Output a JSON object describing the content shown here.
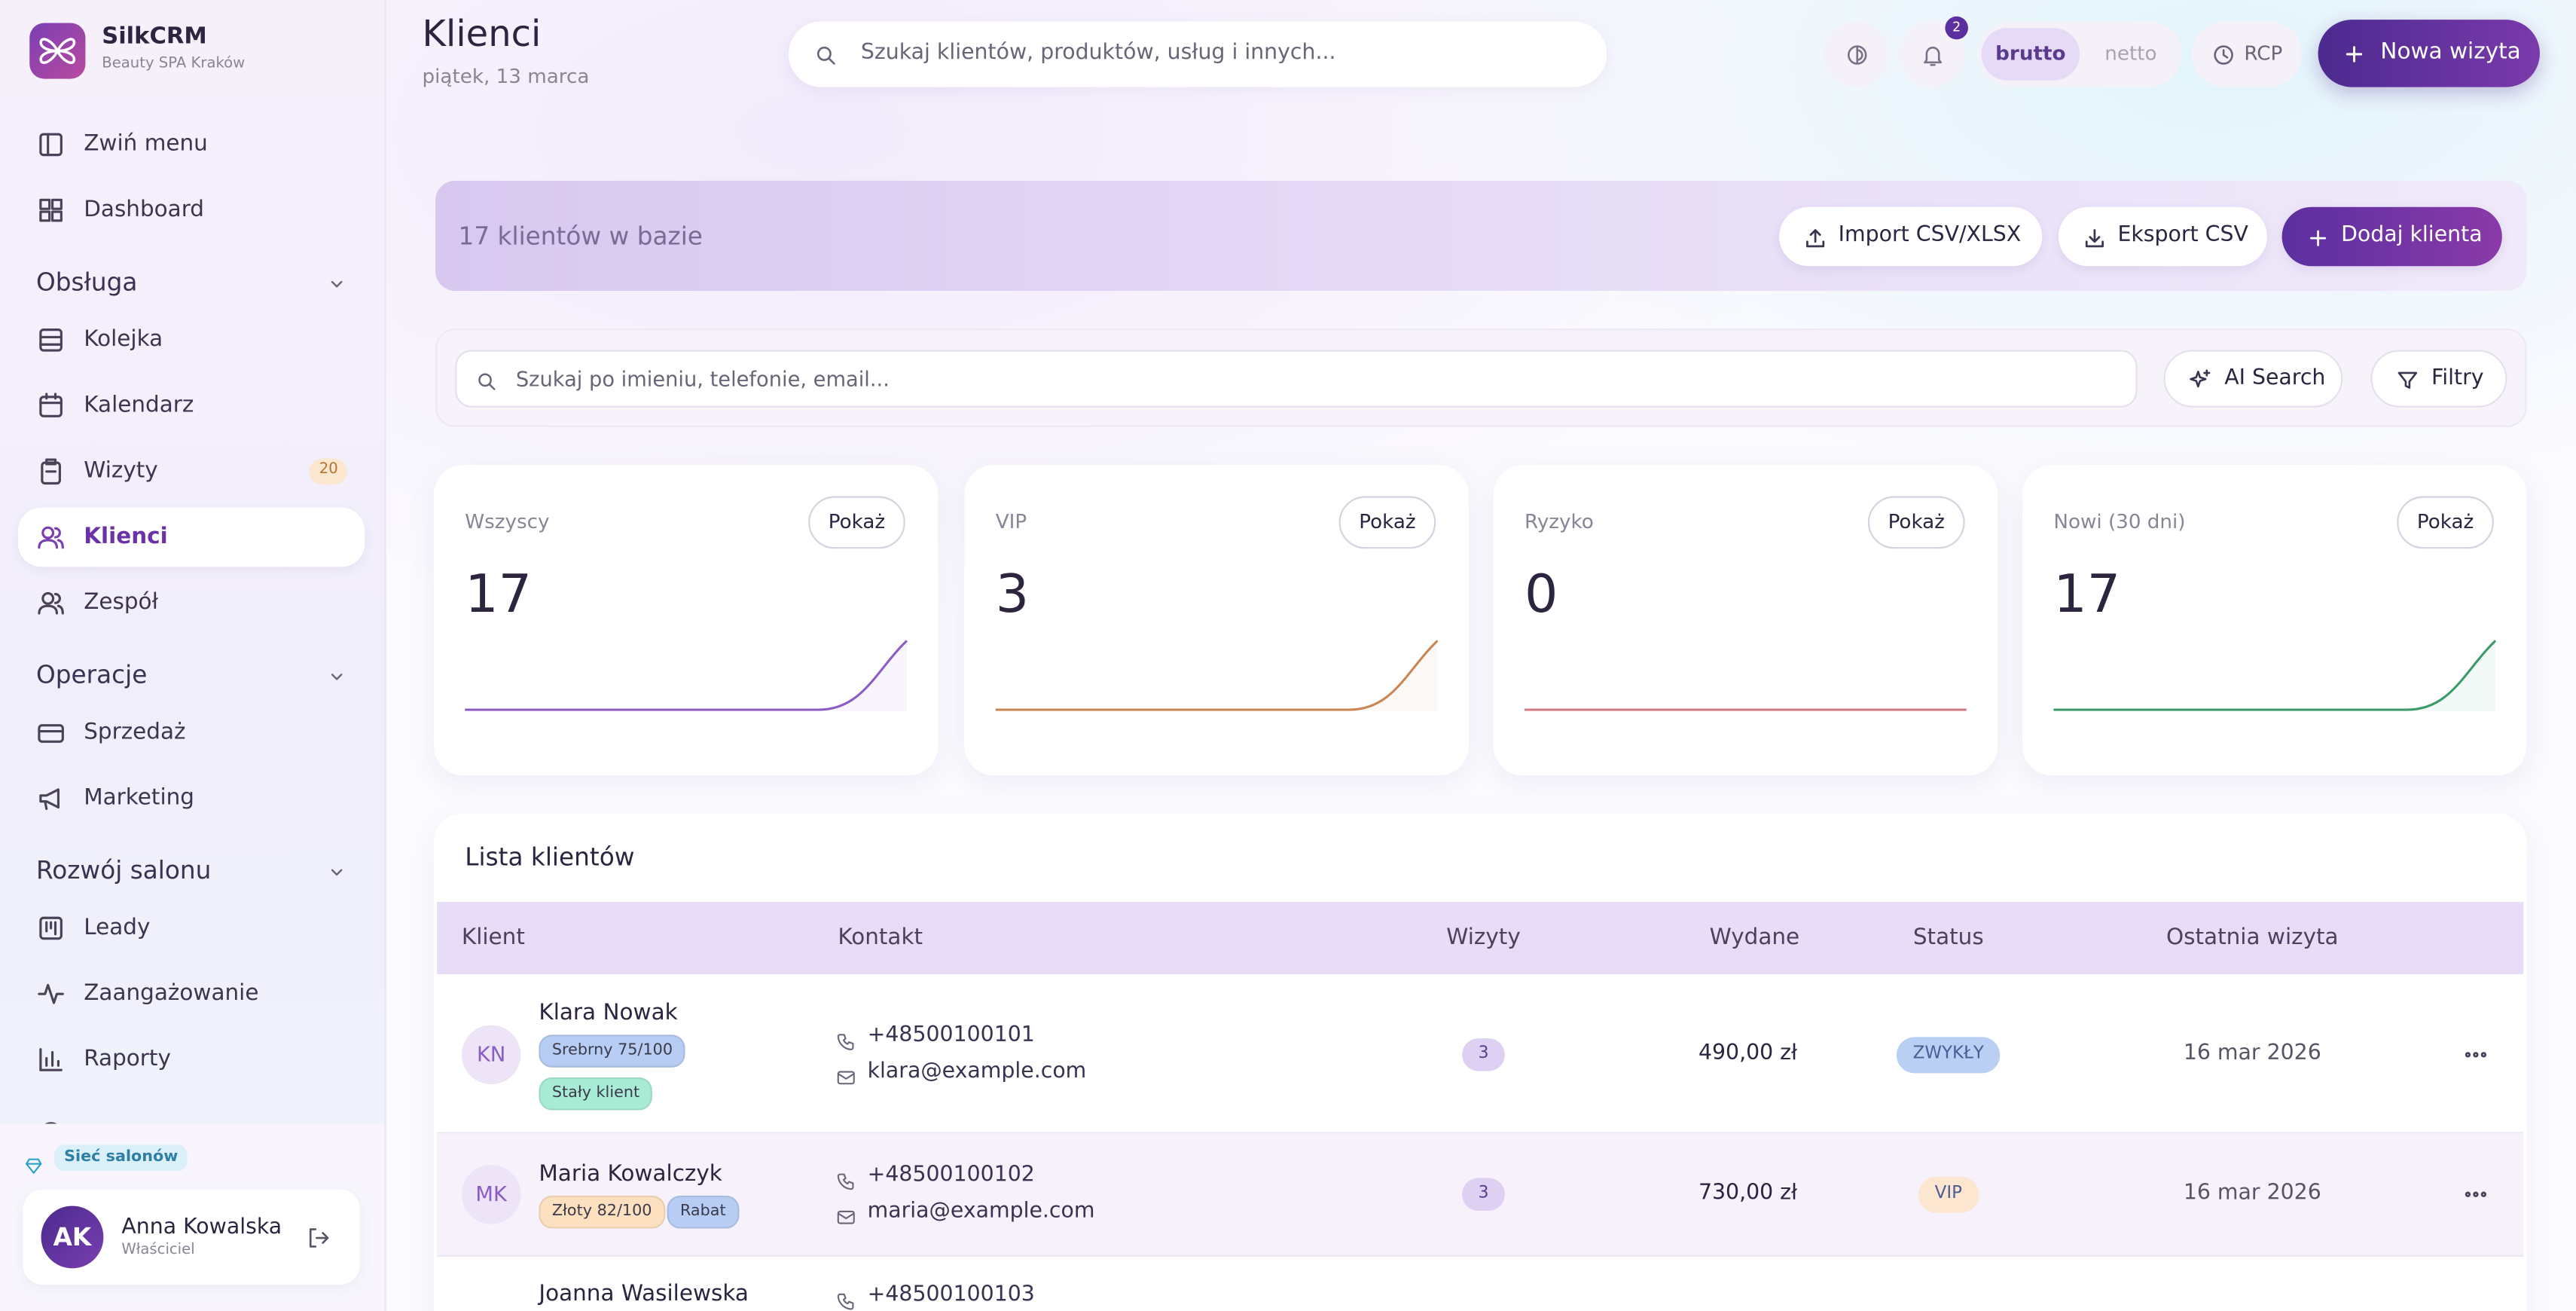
{
  "sidebar": {
    "brand": "SilkCRM",
    "location": "Beauty SPA Kraków",
    "collapse": "Zwiń menu",
    "dashboard": "Dashboard",
    "sections": [
      {
        "title": "Obsługa",
        "items": [
          {
            "label": "Kolejka"
          },
          {
            "label": "Kalendarz"
          },
          {
            "label": "Wizyty",
            "badge": 20
          },
          {
            "label": "Klienci",
            "active": true
          },
          {
            "label": "Zespół"
          }
        ]
      },
      {
        "title": "Operacje",
        "items": [
          {
            "label": "Sprzedaż"
          },
          {
            "label": "Marketing"
          }
        ]
      },
      {
        "title": "Rozwój salonu",
        "items": [
          {
            "label": "Leady"
          },
          {
            "label": "Zaangażowanie"
          },
          {
            "label": "Raporty"
          }
        ]
      }
    ],
    "network_badge": "Sieć salonów",
    "user": {
      "initials": "AK",
      "name": "Anna Kowalska",
      "role": "Właściciel"
    }
  },
  "header": {
    "title": "Klienci",
    "date": "piątek, 13 marca",
    "search_placeholder": "Szukaj klientów, produktów, usług i innych...",
    "notifications": 2,
    "price_modes": [
      "brutto",
      "netto"
    ],
    "active_price_mode": 0,
    "rcp": "RCP",
    "new_visit": "Nowa wizyta"
  },
  "banner": {
    "count_text": "17 klientów w bazie",
    "import": "Import CSV/XLSX",
    "export": "Eksport CSV",
    "add": "Dodaj klienta"
  },
  "filters": {
    "search_placeholder": "Szukaj po imieniu, telefonie, email...",
    "ai_search": "AI Search",
    "filters": "Filtry"
  },
  "stats": [
    {
      "label": "Wszyscy",
      "value": 17,
      "button": "Pokaż",
      "color": "#8a5cc4"
    },
    {
      "label": "VIP",
      "value": 3,
      "button": "Pokaż",
      "color": "#c98552"
    },
    {
      "label": "Ryzyko",
      "value": 0,
      "button": "Pokaż",
      "color": "#d47a86"
    },
    {
      "label": "Nowi (30 dni)",
      "value": 17,
      "button": "Pokaż",
      "color": "#3a9a6a"
    }
  ],
  "table": {
    "title": "Lista klientów",
    "columns": [
      "Klient",
      "Kontakt",
      "Wizyty",
      "Wydane",
      "Status",
      "Ostatnia wizyta"
    ],
    "rows": [
      {
        "initials": "KN",
        "name": "Klara Nowak",
        "tags": [
          {
            "label": "Srebrny 75/100",
            "color": "#b7cdf3"
          },
          {
            "label": "Stały klient",
            "color": "#a9ecd6"
          }
        ],
        "phone": "+48500100101",
        "email": "klara@example.com",
        "visits": 3,
        "spent": "490,00 zł",
        "status": "ZWYKŁY",
        "status_color": "#b9cff4",
        "last_visit": "16 mar 2026"
      },
      {
        "initials": "MK",
        "name": "Maria Kowalczyk",
        "tags": [
          {
            "label": "Złoty 82/100",
            "color": "#fde0bf"
          },
          {
            "label": "Rabat",
            "color": "#b7cdf3"
          }
        ],
        "phone": "+48500100102",
        "email": "maria@example.com",
        "visits": 3,
        "spent": "730,00 zł",
        "status": "VIP",
        "status_color": "#fde6cf",
        "last_visit": "16 mar 2026"
      },
      {
        "name": "Joanna Wasilewska",
        "phone": "+48500100103"
      }
    ]
  }
}
